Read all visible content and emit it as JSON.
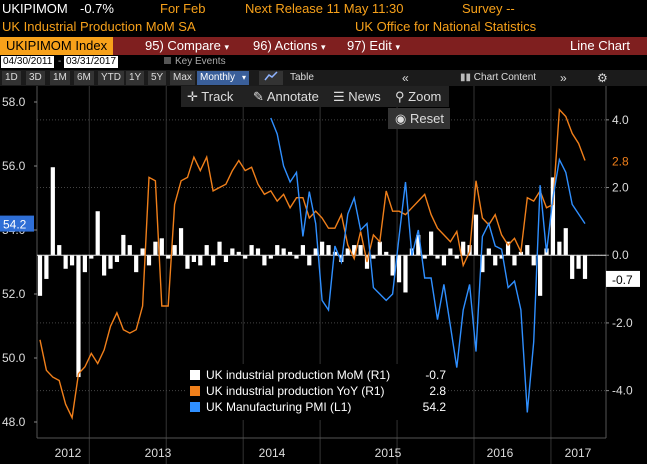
{
  "header": {
    "ticker": "UKIPIMOM",
    "last_value": "-0.7%",
    "for_label": "For Feb",
    "next_release": "Next Release 11 May 11:30",
    "survey": "Survey --",
    "description": "UK Industrial Production MoM SA",
    "source": "UK Office for National Statistics"
  },
  "function_bar": {
    "ticker_label": "UKIPIMOM Index",
    "compare_label": "95) Compare",
    "actions_label": "96) Actions",
    "edit_label": "97) Edit",
    "chart_type": "Line Chart"
  },
  "date_range": {
    "start": "04/30/2011",
    "end": "03/31/2017",
    "key_events_label": "Key Events"
  },
  "range_buttons": [
    "1D",
    "3D",
    "1M",
    "6M",
    "YTD",
    "1Y",
    "5Y",
    "Max"
  ],
  "frequency": "Monthly",
  "table_label": "Table",
  "chart_content_label": "Chart Content",
  "tools": {
    "track": "Track",
    "annotate": "Annotate",
    "news": "News",
    "zoom": "Zoom",
    "reset": "Reset"
  },
  "chart_data": {
    "type": "line",
    "x_labels": [
      "2012",
      "2013",
      "2014",
      "2015",
      "2016",
      "2017"
    ],
    "left_axis": {
      "ticks": [
        "58.0",
        "56.0",
        "54.0",
        "52.0",
        "50.0",
        "48.0"
      ],
      "ylim": [
        47.5,
        58.5
      ]
    },
    "right_axis": {
      "ticks": [
        "4.0",
        "2.0",
        "0.0",
        "-2.0",
        "-4.0"
      ],
      "ylim": [
        -5.4,
        5.0
      ]
    },
    "series": [
      {
        "name": "UK industrial production MoM (R1)",
        "last_label": "-0.7",
        "color": "#ffffff",
        "axis": "right",
        "style": "bar",
        "values": [
          -1.2,
          -0.7,
          2.6,
          0.3,
          -0.4,
          -0.3,
          -3.6,
          -0.5,
          -0.1,
          1.3,
          -0.6,
          -0.4,
          -0.2,
          0.6,
          0.3,
          -0.5,
          0.2,
          -0.3,
          0.4,
          0.5,
          -0.1,
          0.3,
          0.8,
          -0.4,
          -0.2,
          -0.3,
          0.3,
          -0.3,
          0.4,
          -0.2,
          0.2,
          0.1,
          -0.1,
          0.3,
          0.2,
          -0.3,
          -0.1,
          0.3,
          0.2,
          0.1,
          -0.1,
          0.3,
          -0.3,
          0.2,
          0.4,
          0.3,
          0.1,
          -0.2,
          0.2,
          0.3,
          0.3,
          -0.4,
          -0.1,
          0.4,
          0.1,
          -0.6,
          -0.8,
          -1.1,
          0.2,
          0.6,
          -0.1,
          0.7,
          -0.1,
          -0.3,
          0.2,
          -0.1,
          0.4,
          0.3,
          1.2,
          -0.5,
          0.2,
          -0.3,
          -0.1,
          0.4,
          -0.3,
          0.1,
          0.3,
          -0.3,
          -1.2,
          0.2,
          2.3,
          0.4,
          0.8,
          -0.7,
          -0.4,
          -0.7
        ]
      },
      {
        "name": "UK industrial production YoY (R1)",
        "last_label": "2.8",
        "color": "#f07f1a",
        "axis": "right",
        "values": [
          -2.5,
          -3.4,
          -3.6,
          -3.7,
          -4.4,
          -4.8,
          -3.5,
          -3.3,
          -2.9,
          -3.2,
          -2.8,
          -2.1,
          -1.7,
          -2.2,
          -2.3,
          -2.2,
          -1.5,
          2.3,
          2.2,
          -1.5,
          -1.5,
          1.5,
          2.2,
          2.3,
          2.9,
          2.5,
          2.9,
          1.9,
          2.0,
          2.1,
          2.5,
          2.8,
          2.5,
          2.6,
          2.1,
          1.8,
          1.9,
          1.6,
          1.8,
          1.4,
          1.7,
          1.7,
          1.1,
          1.3,
          1.1,
          0.8,
          0.8,
          1.2,
          0.3,
          -0.1,
          0.7,
          -0.2,
          0.6,
          0.4,
          1.9,
          1.3,
          1.3,
          1.2,
          1.4,
          1.6,
          1.8,
          1.2,
          0.8,
          0.6,
          0.4,
          0.7,
          -0.3,
          0.1,
          2.2,
          1.1,
          0.9,
          1.2,
          0.6,
          0.3,
          0.5,
          0.1,
          1.7,
          1.6,
          1.9,
          1.4,
          1.5,
          4.3,
          4.1,
          3.6,
          3.3,
          2.8
        ]
      },
      {
        "name": "UK Manufacturing PMI (L1)",
        "last_label": "54.2",
        "color": "#2f8fff",
        "axis": "left",
        "values": [
          null,
          null,
          null,
          null,
          null,
          null,
          null,
          null,
          null,
          null,
          null,
          null,
          null,
          null,
          null,
          null,
          null,
          null,
          null,
          null,
          null,
          null,
          null,
          null,
          null,
          null,
          null,
          null,
          null,
          null,
          null,
          null,
          null,
          null,
          null,
          null,
          57.5,
          57.0,
          56.0,
          55.5,
          55.8,
          53.8,
          55.2,
          54.2,
          51.8,
          51.5,
          53.5,
          53.0,
          54.5,
          55.0,
          54.0,
          54.2,
          52.2,
          52.0,
          51.8,
          52.0,
          53.8,
          55.5,
          53.2,
          54.0,
          52.5,
          52.5,
          51.2,
          52.3,
          51.0,
          49.7,
          51.5,
          52.3,
          50.2,
          53.8,
          54.2,
          53.5,
          53.4,
          52.2,
          52.4,
          51.5,
          48.3,
          50.5,
          55.4,
          53.3,
          55.0,
          56.2,
          55.8,
          54.8,
          54.5,
          54.2
        ]
      }
    ]
  }
}
